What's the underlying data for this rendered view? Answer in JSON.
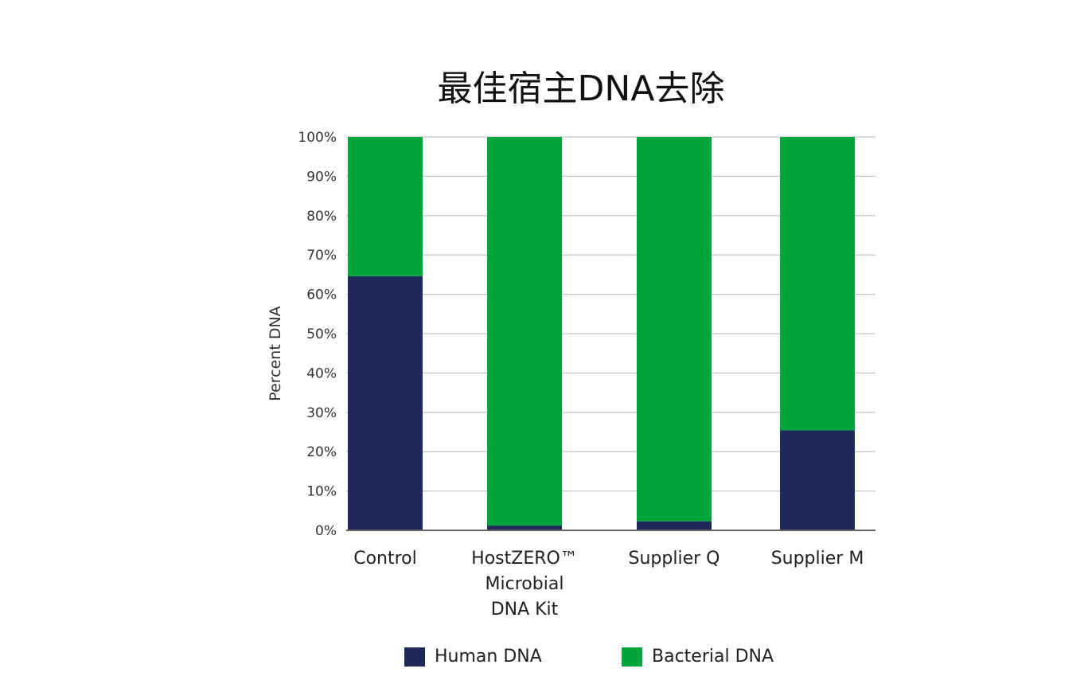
{
  "chart_data": {
    "type": "bar",
    "stacked": true,
    "title": "最佳宿主DNA去除",
    "ylabel": "Percent DNA",
    "xlabel": "",
    "ylim": [
      0,
      100
    ],
    "yticks": [
      "0%",
      "10%",
      "20%",
      "30%",
      "40%",
      "50%",
      "60%",
      "70%",
      "80%",
      "90%",
      "100%"
    ],
    "grid": true,
    "legend_position": "bottom",
    "categories": [
      [
        "Control"
      ],
      [
        "HostZERO™",
        "Microbial",
        "DNA Kit"
      ],
      [
        "Supplier Q"
      ],
      [
        "Supplier M"
      ]
    ],
    "series": [
      {
        "name": "Human DNA",
        "color": "#1f2a5a",
        "values": [
          64.6,
          1.2,
          2.3,
          25.4
        ]
      },
      {
        "name": "Bacterial DNA",
        "color": "#00a63c",
        "values": [
          35.4,
          98.8,
          97.7,
          74.6
        ]
      }
    ]
  }
}
